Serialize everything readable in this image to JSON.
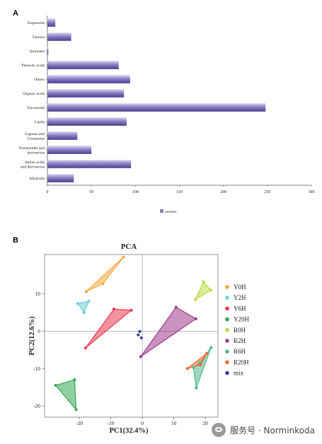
{
  "chart_data": [
    {
      "type": "bar",
      "panel_label": "A",
      "orientation": "horizontal",
      "categories": [
        "Terpenoids",
        "Tannins",
        "Quinones",
        "Phenolic acids",
        "Others",
        "Organic acids",
        "Flavonoids",
        "Lipids",
        "Lignans and Coumarins",
        "Nucleotides and derivatives",
        "Amino acids and derivatives",
        "Alkaloids"
      ],
      "values": [
        9,
        27,
        1,
        81,
        94,
        87,
        248,
        90,
        34,
        50,
        95,
        30
      ],
      "xlim": [
        0,
        300
      ],
      "xticks": [
        0,
        50,
        100,
        150,
        200,
        250,
        300
      ],
      "legend": "number",
      "legend_position": "bottom",
      "bar_color": "#8a80c6",
      "grid": false
    },
    {
      "type": "scatter",
      "panel_label": "B",
      "title": "PCA",
      "xlabel": "PC1(32.4%)",
      "ylabel": "PC2(12.6%)",
      "xlim": [
        -31,
        24
      ],
      "ylim": [
        -23,
        20.5
      ],
      "xticks": [
        -20,
        -10,
        0,
        10,
        20
      ],
      "yticks": [
        -20,
        -10,
        0,
        10
      ],
      "legend_position": "right",
      "series": [
        {
          "name": "Y0H",
          "color": "#f5a742",
          "points": [
            [
              -6,
              19.8
            ],
            [
              -12.5,
              12.7
            ],
            [
              -17.8,
              10.6
            ]
          ]
        },
        {
          "name": "Y2H",
          "color": "#6fcfd6",
          "points": [
            [
              -20.5,
              7.4
            ],
            [
              -18.5,
              5
            ],
            [
              -17,
              8
            ]
          ]
        },
        {
          "name": "Y6H",
          "color": "#e8384e",
          "points": [
            [
              -18,
              -4.5
            ],
            [
              -9,
              5.9
            ],
            [
              -3.5,
              5.6
            ]
          ]
        },
        {
          "name": "Y20H",
          "color": "#34a853",
          "points": [
            [
              -27.5,
              -14.5
            ],
            [
              -21,
              -21
            ],
            [
              -21.5,
              -13
            ]
          ]
        },
        {
          "name": "R0H",
          "color": "#b8dc3c",
          "points": [
            [
              16.8,
              8.4
            ],
            [
              19.4,
              13.2
            ],
            [
              21.7,
              11
            ]
          ]
        },
        {
          "name": "R2H",
          "color": "#9c3a8a",
          "points": [
            [
              -0.5,
              -6.8
            ],
            [
              10.7,
              6.4
            ],
            [
              17,
              3.3
            ]
          ]
        },
        {
          "name": "R6H",
          "color": "#4fb98a",
          "points": [
            [
              16.2,
              -9.7
            ],
            [
              17.1,
              -15.2
            ],
            [
              21.8,
              -4.4
            ],
            [
              18.3,
              -8.5
            ]
          ]
        },
        {
          "name": "R20H",
          "color": "#f06830",
          "points": [
            [
              14.3,
              -10
            ],
            [
              18.5,
              -9
            ],
            [
              20.4,
              -6
            ]
          ]
        },
        {
          "name": "mix",
          "color": "#3d3f8f",
          "points": [
            [
              -0.8,
              -0.1
            ],
            [
              -0.3,
              -1.8
            ],
            [
              -1.3,
              -1
            ]
          ]
        }
      ]
    }
  ],
  "watermark": "服务号 · Norminkoda"
}
